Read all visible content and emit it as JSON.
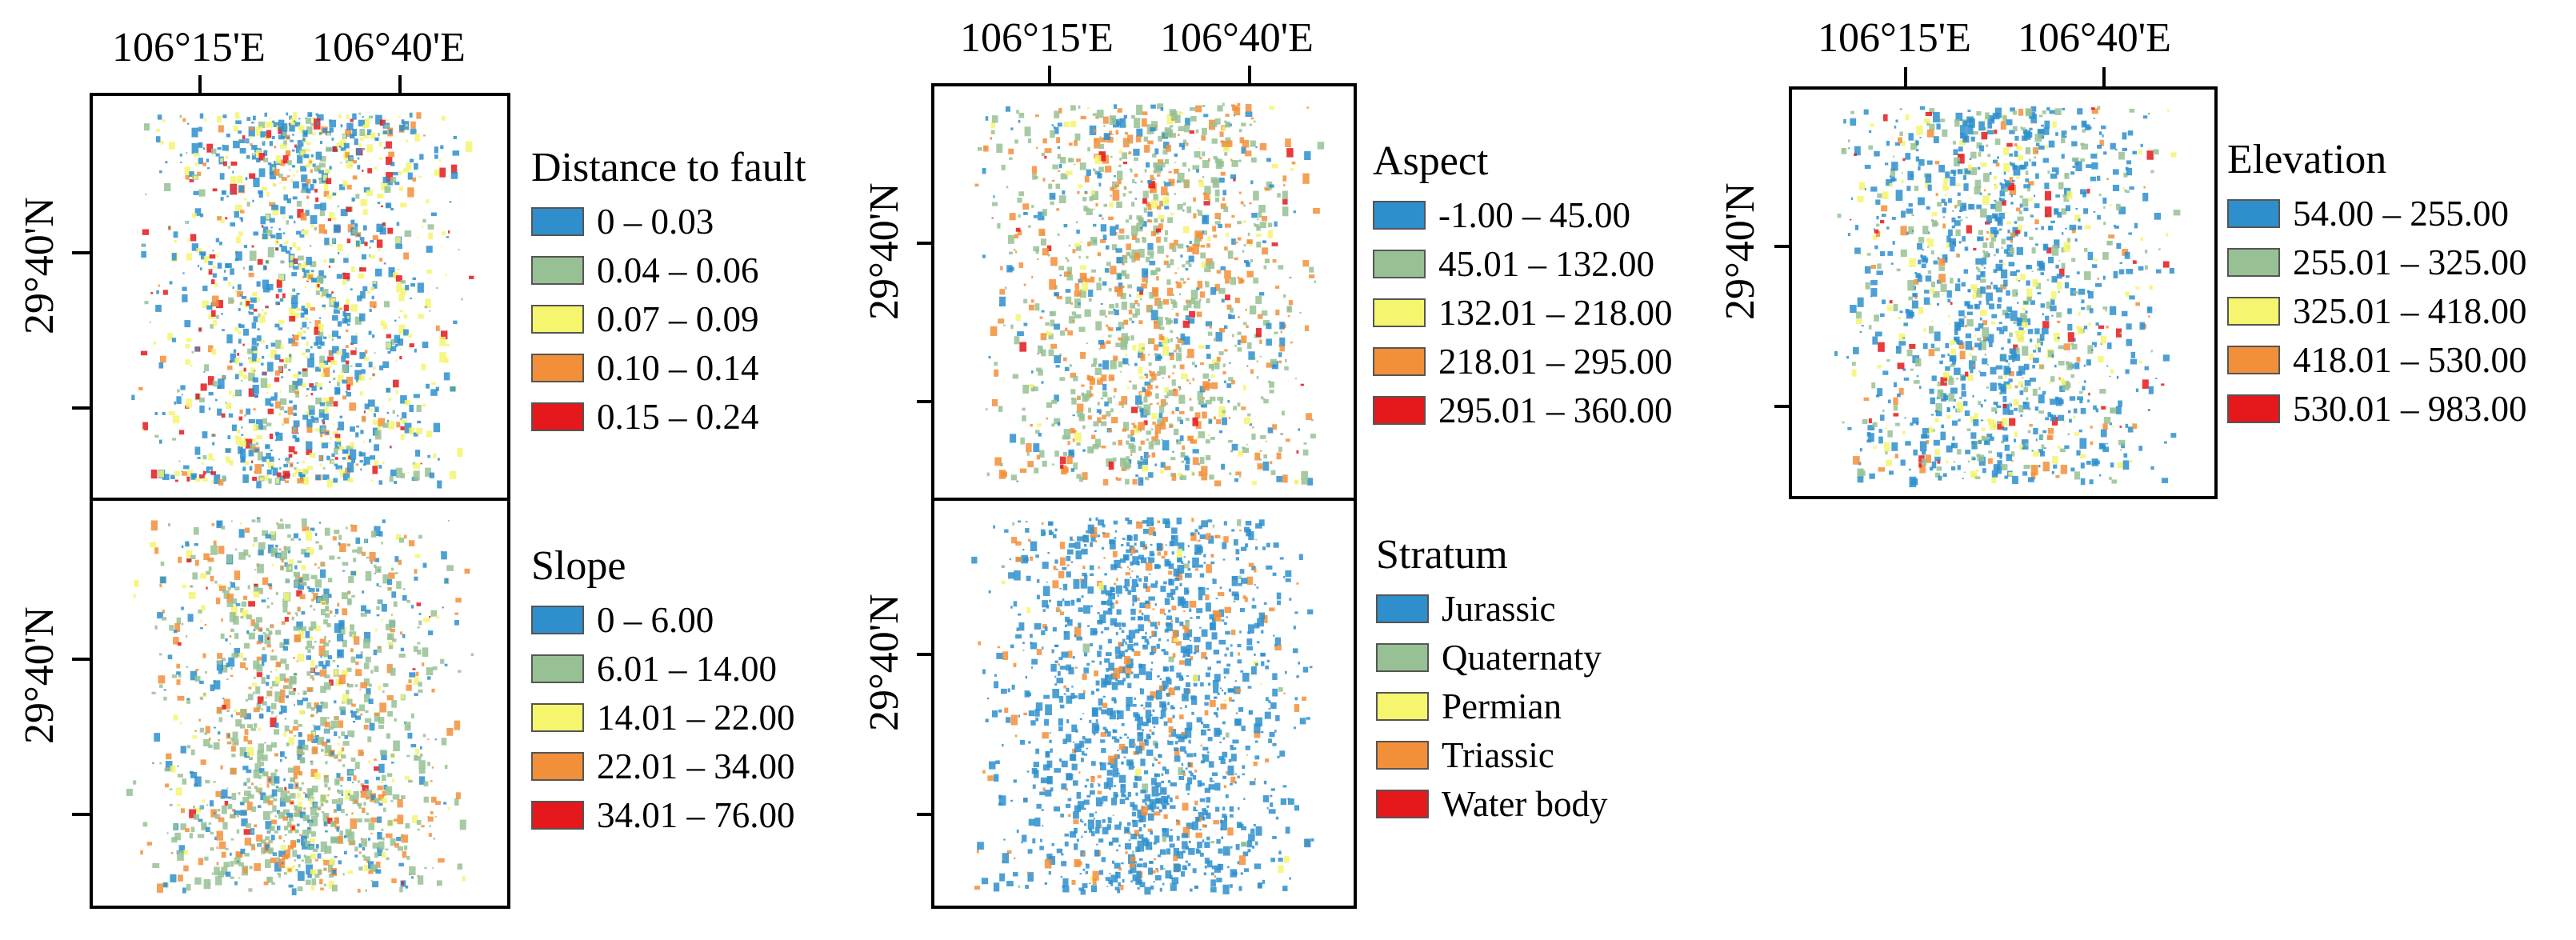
{
  "axes": {
    "lon_labels": [
      "106°15'E",
      "106°40'E"
    ],
    "lat_label": "29°40'N"
  },
  "colors": {
    "blue": "#2e8fcc",
    "green": "#97c194",
    "yellow": "#f5f56e",
    "orange": "#f28f39",
    "red": "#e5181b"
  },
  "maps": {
    "distance_to_fault": {
      "title": "Distance to fault",
      "classes": [
        {
          "label": "0   –  0.03",
          "color": "#2e8fcc"
        },
        {
          "label": "0.04 – 0.06",
          "color": "#97c194"
        },
        {
          "label": "0.07 – 0.09",
          "color": "#f5f56e"
        },
        {
          "label": "0.10 – 0.14",
          "color": "#f28f39"
        },
        {
          "label": "0.15 – 0.24",
          "color": "#e5181b"
        }
      ]
    },
    "slope": {
      "title": "Slope",
      "classes": [
        {
          "label": "0   –   6.00",
          "color": "#2e8fcc"
        },
        {
          "label": "6.01 – 14.00",
          "color": "#97c194"
        },
        {
          "label": "14.01 – 22.00",
          "color": "#f5f56e"
        },
        {
          "label": "22.01 – 34.00",
          "color": "#f28f39"
        },
        {
          "label": "34.01 – 76.00",
          "color": "#e5181b"
        }
      ]
    },
    "aspect": {
      "title": "Aspect",
      "classes": [
        {
          "label": "-1.00   –  45.00",
          "color": "#2e8fcc"
        },
        {
          "label": "45.01 – 132.00",
          "color": "#97c194"
        },
        {
          "label": "132.01 – 218.00",
          "color": "#f5f56e"
        },
        {
          "label": "218.01 – 295.00",
          "color": "#f28f39"
        },
        {
          "label": "295.01 – 360.00",
          "color": "#e5181b"
        }
      ]
    },
    "stratum": {
      "title": "Stratum",
      "classes": [
        {
          "label": "Jurassic",
          "color": "#2e8fcc"
        },
        {
          "label": "Quaternaty",
          "color": "#97c194"
        },
        {
          "label": "Permian",
          "color": "#f5f56e"
        },
        {
          "label": "Triassic",
          "color": "#f28f39"
        },
        {
          "label": "Water body",
          "color": "#e5181b"
        }
      ]
    },
    "elevation": {
      "title": "Elevation",
      "classes": [
        {
          "label": "54.00  – 255.00",
          "color": "#2e8fcc"
        },
        {
          "label": "255.01 – 325.00",
          "color": "#97c194"
        },
        {
          "label": "325.01 – 418.00",
          "color": "#f5f56e"
        },
        {
          "label": "418.01 – 530.00",
          "color": "#f28f39"
        },
        {
          "label": "530.01 – 983.00",
          "color": "#e5181b"
        }
      ]
    }
  }
}
